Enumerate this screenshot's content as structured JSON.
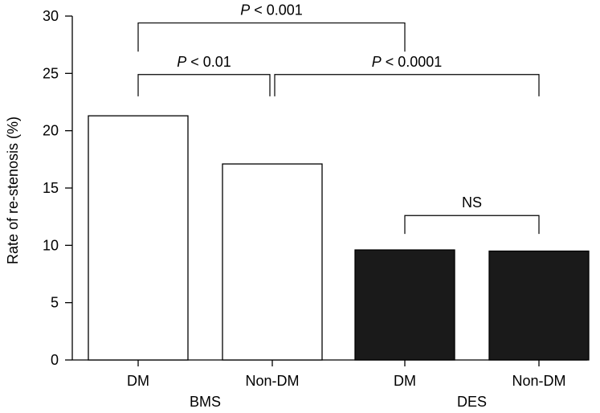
{
  "chart_data": {
    "type": "bar",
    "ylabel": "Rate of re-stenosis (%)",
    "ylim": [
      0,
      30
    ],
    "yticks": [
      0,
      5,
      10,
      15,
      20,
      25,
      30
    ],
    "categories": [
      "DM",
      "Non-DM",
      "DM",
      "Non-DM"
    ],
    "groups": [
      {
        "label": "BMS",
        "categories": [
          0,
          1
        ]
      },
      {
        "label": "DES",
        "categories": [
          2,
          3
        ]
      }
    ],
    "values": [
      21.3,
      17.1,
      9.6,
      9.5
    ],
    "bar_fill": [
      "#ffffff",
      "#ffffff",
      "#1a1a1a",
      "#1a1a1a"
    ],
    "grid": false,
    "annotations": [
      {
        "from": 0,
        "to": 2,
        "level": 29.4,
        "drop": 26.9,
        "label_italic": "P",
        "label_rest": " < 0.001"
      },
      {
        "from": 0,
        "to": 1,
        "level": 24.9,
        "drop": 23.0,
        "label_italic": "P",
        "label_rest": " < 0.01"
      },
      {
        "from": 1,
        "to": 3,
        "level": 24.9,
        "drop": 23.0,
        "label_italic": "P",
        "label_rest": " < 0.0001"
      },
      {
        "from": 2,
        "to": 3,
        "level": 12.6,
        "drop": 11.0,
        "label_italic": "",
        "label_rest": "NS"
      }
    ]
  }
}
